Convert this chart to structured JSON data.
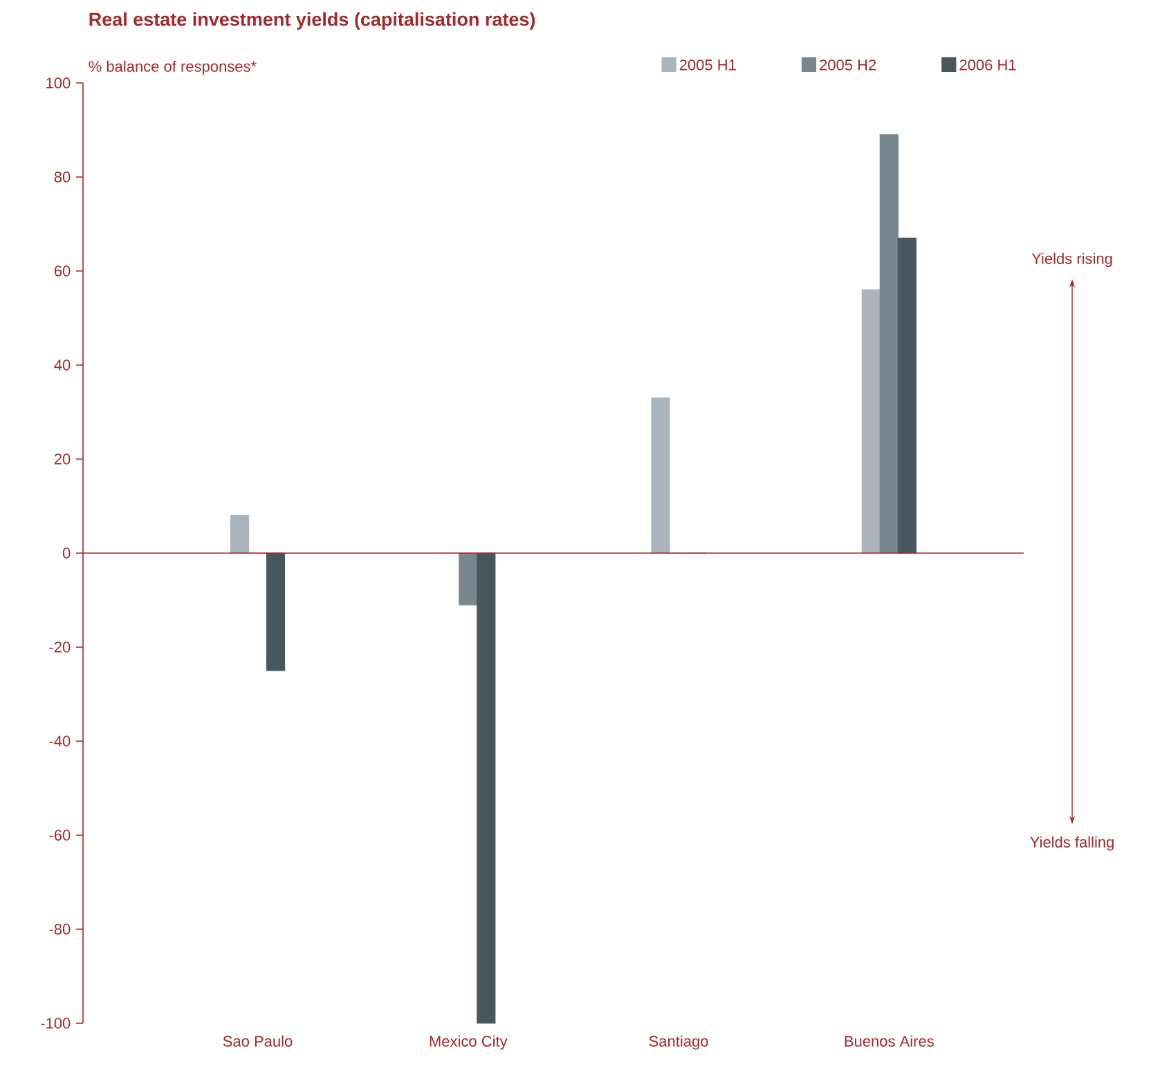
{
  "chart_data": {
    "type": "bar",
    "title": "Real estate investment yields (capitalisation rates)",
    "ylabel": "% balance of responses*",
    "categories": [
      "Sao Paulo",
      "Mexico City",
      "Santiago",
      "Buenos Aires"
    ],
    "series": [
      {
        "name": "2005 H1",
        "color": "#a9b4bc",
        "values": [
          8,
          0,
          33,
          56
        ]
      },
      {
        "name": "2005 H2",
        "color": "#78878f",
        "values": [
          0,
          -11,
          0,
          89
        ]
      },
      {
        "name": "2006 H1",
        "color": "#48565d",
        "values": [
          -25,
          -100,
          0,
          67
        ]
      }
    ],
    "ylim": [
      -100,
      100
    ],
    "yticks": [
      -100,
      -80,
      -60,
      -40,
      -20,
      0,
      20,
      40,
      60,
      80,
      100
    ],
    "legend": "top right",
    "grid": false,
    "ref_lines": [
      {
        "axis": "y",
        "value": 0,
        "color": "#a5282a"
      }
    ],
    "annotations": [
      "Yields rising",
      "Yields falling"
    ]
  }
}
